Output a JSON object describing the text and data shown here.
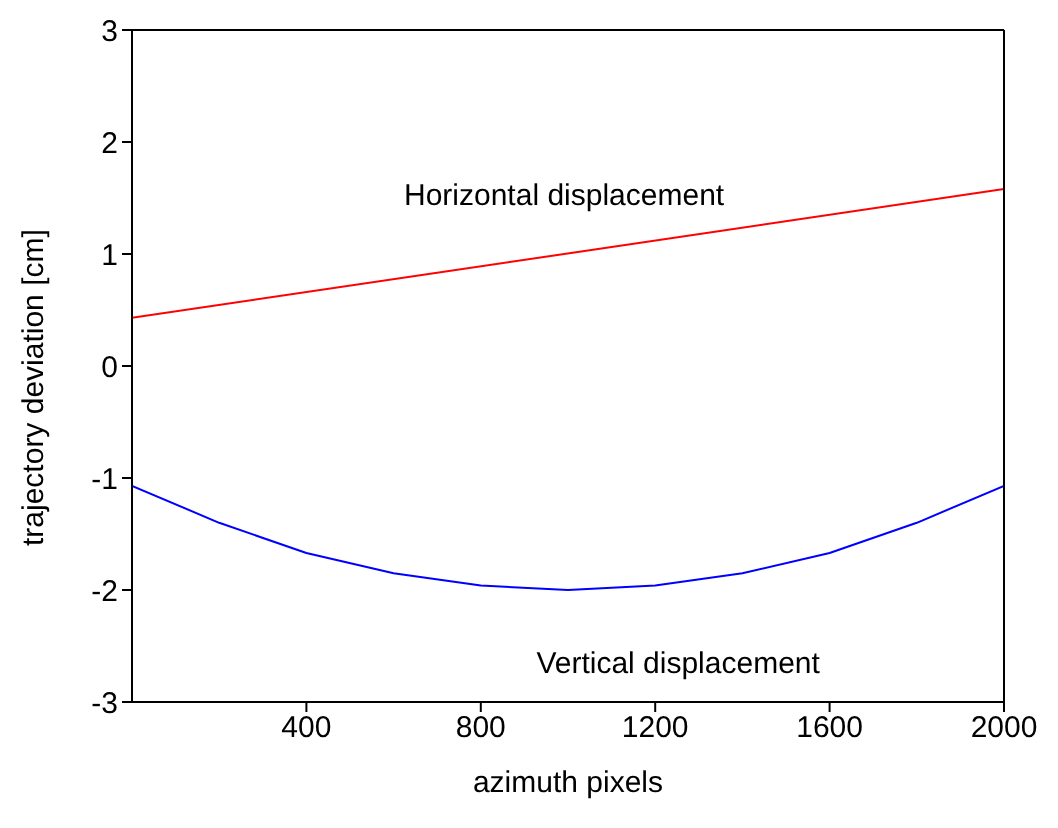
{
  "chart_data": {
    "type": "line",
    "xlabel": "azimuth pixels",
    "ylabel": "trajectory deviation [cm]",
    "xlim": [
      0,
      2000
    ],
    "xticks": [
      400,
      800,
      1200,
      1600,
      2000
    ],
    "ylim": [
      -3,
      3
    ],
    "yticks": [
      -3,
      -2,
      -1,
      0,
      1,
      2,
      3
    ],
    "marker": "none",
    "line_style": "solid",
    "series": [
      {
        "name": "Horizontal displacement",
        "color": "#ff0000",
        "x": [
          0,
          2000
        ],
        "values": [
          0.43,
          1.58
        ]
      },
      {
        "name": "Vertical displacement",
        "color": "#0000ff",
        "x": [
          0,
          200,
          400,
          600,
          800,
          1000,
          1200,
          1400,
          1600,
          1800,
          2000
        ],
        "values": [
          -1.07,
          -1.4,
          -1.67,
          -1.85,
          -1.96,
          -2.0,
          -1.96,
          -1.85,
          -1.67,
          -1.4,
          -1.07
        ]
      }
    ]
  }
}
